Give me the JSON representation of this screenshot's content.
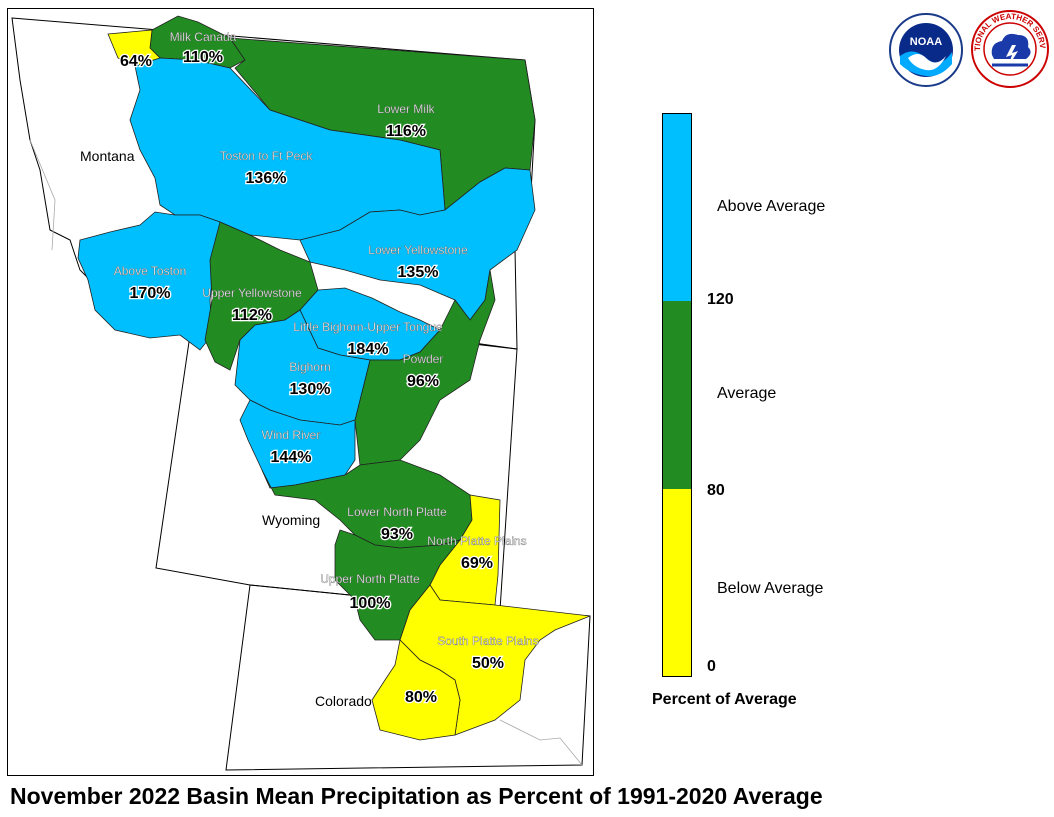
{
  "title": "November 2022 Basin Mean Precipitation as Percent of 1991-2020 Average",
  "legend": {
    "title": "Percent of Average",
    "categories": [
      {
        "label": "Above Average",
        "color": "#00bfff"
      },
      {
        "label": "Average",
        "color": "#228b22"
      },
      {
        "label": "Below Average",
        "color": "#ffff00"
      }
    ],
    "ticks": [
      "120",
      "80",
      "0"
    ]
  },
  "states": [
    "Montana",
    "Wyoming",
    "Colorado"
  ],
  "basins": [
    {
      "name": "Milk Canada",
      "percent": "110%",
      "category": "Average"
    },
    {
      "name": "",
      "percent": "64%",
      "category": "Below Average"
    },
    {
      "name": "Lower Milk",
      "percent": "116%",
      "category": "Average"
    },
    {
      "name": "Toston to Ft Peck",
      "percent": "136%",
      "category": "Above Average"
    },
    {
      "name": "Lower Yellowstone",
      "percent": "135%",
      "category": "Above Average"
    },
    {
      "name": "Above Toston",
      "percent": "170%",
      "category": "Above Average"
    },
    {
      "name": "Upper Yellowstone",
      "percent": "112%",
      "category": "Average"
    },
    {
      "name": "Little Bighorn-Upper Tongue",
      "percent": "184%",
      "category": "Above Average"
    },
    {
      "name": "Bighorn",
      "percent": "130%",
      "category": "Above Average"
    },
    {
      "name": "Powder",
      "percent": "96%",
      "category": "Average"
    },
    {
      "name": "Wind River",
      "percent": "144%",
      "category": "Above Average"
    },
    {
      "name": "Lower North Platte",
      "percent": "93%",
      "category": "Average"
    },
    {
      "name": "North Platte Plains",
      "percent": "69%",
      "category": "Below Average"
    },
    {
      "name": "Upper North Platte",
      "percent": "100%",
      "category": "Average"
    },
    {
      "name": "South Platte Plains",
      "percent": "50%",
      "category": "Below Average"
    },
    {
      "name": "",
      "percent": "80%",
      "category": "Below Average"
    }
  ],
  "logos": [
    {
      "name": "NOAA",
      "icon": "noaa-logo"
    },
    {
      "name": "NATIONAL WEATHER SERVICE",
      "icon": "nws-logo"
    }
  ]
}
